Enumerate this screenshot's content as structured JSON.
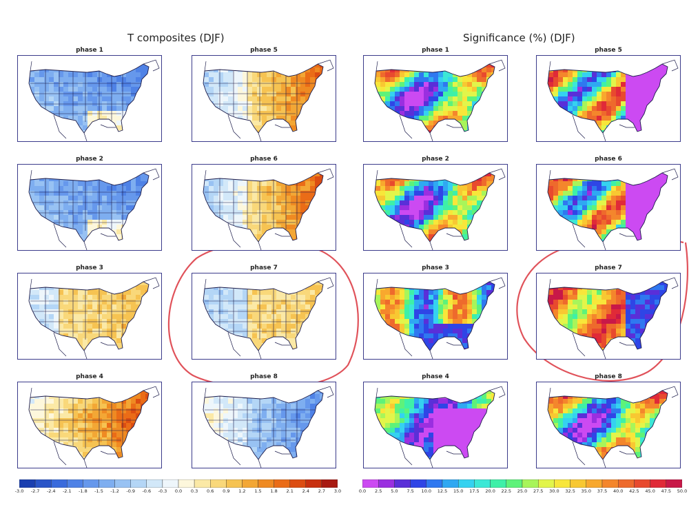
{
  "titles": {
    "left": "T composites (DJF)",
    "right": "Significance (%) (DJF)"
  },
  "panels": {
    "t": [
      {
        "label": "phase 1",
        "theme": "cold"
      },
      {
        "label": "phase 5",
        "theme": "warm_east"
      },
      {
        "label": "phase 2",
        "theme": "cold"
      },
      {
        "label": "phase 6",
        "theme": "warm_east"
      },
      {
        "label": "phase 3",
        "theme": "mild_warm"
      },
      {
        "label": "phase 7",
        "theme": "mild_mixed"
      },
      {
        "label": "phase 4",
        "theme": "warm_strong"
      },
      {
        "label": "phase 8",
        "theme": "cold_east"
      }
    ],
    "sig": [
      {
        "label": "phase 1",
        "theme": "sig_mixed"
      },
      {
        "label": "phase 5",
        "theme": "sig_purple_east"
      },
      {
        "label": "phase 2",
        "theme": "sig_mixed"
      },
      {
        "label": "phase 6",
        "theme": "sig_purple_east"
      },
      {
        "label": "phase 3",
        "theme": "sig_blue_se"
      },
      {
        "label": "phase 7",
        "theme": "sig_blue_east"
      },
      {
        "label": "phase 4",
        "theme": "sig_purple_center"
      },
      {
        "label": "phase 8",
        "theme": "sig_mixed"
      }
    ]
  },
  "colorbars": {
    "temperature": {
      "ticks": [
        "-3.0",
        "-2.7",
        "-2.4",
        "-2.1",
        "-1.8",
        "-1.5",
        "-1.2",
        "-0.9",
        "-0.6",
        "-0.3",
        "0.0",
        "0.3",
        "0.6",
        "0.9",
        "1.2",
        "1.5",
        "1.8",
        "2.1",
        "2.4",
        "2.7",
        "3.0"
      ],
      "colors": [
        "#1a3fb0",
        "#2a55c8",
        "#3a6bdc",
        "#4f82e6",
        "#6698ec",
        "#7eaef0",
        "#98c2f3",
        "#b4d6f6",
        "#d2e8f9",
        "#eef6fb",
        "#fdf7dc",
        "#fbe9a6",
        "#f9d87a",
        "#f6c352",
        "#f3a735",
        "#ef8a22",
        "#ea6c17",
        "#dc4d12",
        "#c8300f",
        "#a81a12"
      ]
    },
    "significance": {
      "ticks": [
        "0.0",
        "2.5",
        "5.0",
        "7.5",
        "10.0",
        "12.5",
        "15.0",
        "17.5",
        "20.0",
        "22.5",
        "25.0",
        "27.5",
        "30.0",
        "32.5",
        "35.0",
        "37.5",
        "40.0",
        "42.5",
        "45.0",
        "47.5",
        "50.0"
      ],
      "colors": [
        "#cc4af2",
        "#9a2fe0",
        "#5a2fd8",
        "#2f45e6",
        "#2f78f0",
        "#2fa8f2",
        "#35d2f0",
        "#3ce8d6",
        "#3ef0a8",
        "#5ef27a",
        "#a8f55a",
        "#e2f54a",
        "#f8e63a",
        "#f8c832",
        "#f8a82e",
        "#f4862c",
        "#ee6a2c",
        "#e84a2e",
        "#e02a38",
        "#c81848"
      ]
    }
  },
  "chart_data": [
    {
      "type": "heatmap",
      "title": "T composites (DJF)",
      "panels": [
        "phase 1",
        "phase 2",
        "phase 3",
        "phase 4",
        "phase 5",
        "phase 6",
        "phase 7",
        "phase 8"
      ],
      "colorbar_ticks": [
        -3.0,
        -2.7,
        -2.4,
        -2.1,
        -1.8,
        -1.5,
        -1.2,
        -0.9,
        -0.6,
        -0.3,
        0.0,
        0.3,
        0.6,
        0.9,
        1.2,
        1.5,
        1.8,
        2.1,
        2.4,
        2.7,
        3.0
      ],
      "ylim": [
        -3.0,
        3.0
      ]
    },
    {
      "type": "heatmap",
      "title": "Significance (%) (DJF)",
      "panels": [
        "phase 1",
        "phase 2",
        "phase 3",
        "phase 4",
        "phase 5",
        "phase 6",
        "phase 7",
        "phase 8"
      ],
      "colorbar_ticks": [
        0.0,
        2.5,
        5.0,
        7.5,
        10.0,
        12.5,
        15.0,
        17.5,
        20.0,
        22.5,
        25.0,
        27.5,
        30.0,
        32.5,
        35.0,
        37.5,
        40.0,
        42.5,
        45.0,
        47.5,
        50.0
      ],
      "ylim": [
        0.0,
        50.0
      ]
    }
  ],
  "annotations": {
    "highlighted": [
      "phase 7"
    ],
    "highlight_color": "#e0525a"
  }
}
